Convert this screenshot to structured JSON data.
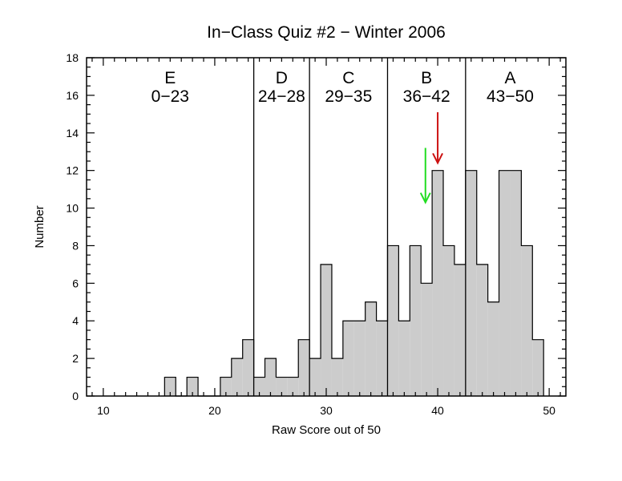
{
  "chart_data": {
    "type": "histogram",
    "title": "In−Class Quiz #2 − Winter 2006",
    "xlabel": "Raw Score out of 50",
    "ylabel": "Number",
    "xlim": [
      8.5,
      51.5
    ],
    "ylim": [
      0,
      18
    ],
    "x_ticks": [
      10,
      20,
      30,
      40,
      50
    ],
    "y_ticks": [
      0,
      2,
      4,
      6,
      8,
      10,
      12,
      14,
      16,
      18
    ],
    "bin_width": 1,
    "bins": [
      {
        "score": 16,
        "count": 1
      },
      {
        "score": 17,
        "count": 0
      },
      {
        "score": 18,
        "count": 1
      },
      {
        "score": 19,
        "count": 0
      },
      {
        "score": 20,
        "count": 0
      },
      {
        "score": 21,
        "count": 1
      },
      {
        "score": 22,
        "count": 2
      },
      {
        "score": 23,
        "count": 3
      },
      {
        "score": 24,
        "count": 1
      },
      {
        "score": 25,
        "count": 2
      },
      {
        "score": 26,
        "count": 1
      },
      {
        "score": 27,
        "count": 1
      },
      {
        "score": 28,
        "count": 3
      },
      {
        "score": 29,
        "count": 2
      },
      {
        "score": 30,
        "count": 7
      },
      {
        "score": 31,
        "count": 2
      },
      {
        "score": 32,
        "count": 4
      },
      {
        "score": 33,
        "count": 4
      },
      {
        "score": 34,
        "count": 5
      },
      {
        "score": 35,
        "count": 4
      },
      {
        "score": 36,
        "count": 8
      },
      {
        "score": 37,
        "count": 4
      },
      {
        "score": 38,
        "count": 8
      },
      {
        "score": 39,
        "count": 6
      },
      {
        "score": 40,
        "count": 12
      },
      {
        "score": 41,
        "count": 8
      },
      {
        "score": 42,
        "count": 7
      },
      {
        "score": 43,
        "count": 12
      },
      {
        "score": 44,
        "count": 7
      },
      {
        "score": 45,
        "count": 5
      },
      {
        "score": 46,
        "count": 12
      },
      {
        "score": 47,
        "count": 12
      },
      {
        "score": 48,
        "count": 8
      },
      {
        "score": 49,
        "count": 3
      }
    ],
    "grade_boundaries": [
      23.5,
      28.5,
      35.5,
      42.5
    ],
    "grade_bands": [
      {
        "grade": "E",
        "range": "0−23",
        "center": 16
      },
      {
        "grade": "D",
        "range": "24−28",
        "center": 26
      },
      {
        "grade": "C",
        "range": "29−35",
        "center": 32
      },
      {
        "grade": "B",
        "range": "36−42",
        "center": 39
      },
      {
        "grade": "A",
        "range": "43−50",
        "center": 46.5
      }
    ],
    "arrows": [
      {
        "color": "#22dd22",
        "x": 38.9,
        "from_y": 13.2,
        "to_y": 10.3
      },
      {
        "color": "#cc1111",
        "x": 40.0,
        "from_y": 15.1,
        "to_y": 12.4
      }
    ],
    "colors": {
      "bar_fill": "#cccccc",
      "line": "#000000"
    },
    "grid": false
  }
}
